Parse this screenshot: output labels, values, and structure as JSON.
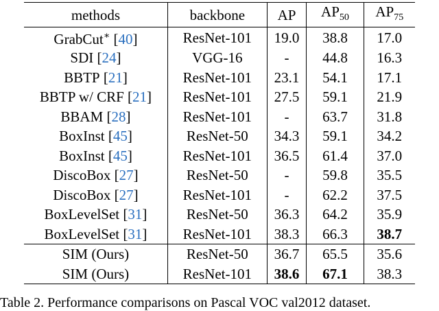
{
  "table": {
    "header": [
      {
        "text": "methods"
      },
      {
        "text": "backbone"
      },
      {
        "text": "AP"
      },
      {
        "text": "AP",
        "sub": "50"
      },
      {
        "text": "AP",
        "sub": "75"
      }
    ],
    "rows": [
      {
        "method": {
          "name": "GrabCut",
          "sup": "∗",
          "cite": [
            "[",
            "40",
            "]"
          ]
        },
        "cells": [
          "ResNet-101",
          "19.0",
          "38.8",
          "17.0"
        ]
      },
      {
        "method": {
          "name": "SDI",
          "cite": [
            "[",
            "24",
            "]"
          ]
        },
        "cells": [
          "VGG-16",
          "-",
          "44.8",
          "16.3"
        ]
      },
      {
        "method": {
          "name": "BBTP",
          "cite": [
            "[",
            "21",
            "]"
          ]
        },
        "cells": [
          "ResNet-101",
          "23.1",
          "54.1",
          "17.1"
        ]
      },
      {
        "method": {
          "name": "BBTP w/ CRF",
          "cite": [
            "[",
            "21",
            "]"
          ]
        },
        "cells": [
          "ResNet-101",
          "27.5",
          "59.1",
          "21.9"
        ]
      },
      {
        "method": {
          "name": "BBAM",
          "cite": [
            "[",
            "28",
            "]"
          ]
        },
        "cells": [
          "ResNet-101",
          "-",
          "63.7",
          "31.8"
        ]
      },
      {
        "method": {
          "name": "BoxInst",
          "cite": [
            "[",
            "45",
            "]"
          ]
        },
        "cells": [
          "ResNet-50",
          "34.3",
          "59.1",
          "34.2"
        ]
      },
      {
        "method": {
          "name": "BoxInst",
          "cite": [
            "[",
            "45",
            "]"
          ]
        },
        "cells": [
          "ResNet-101",
          "36.5",
          "61.4",
          "37.0"
        ]
      },
      {
        "method": {
          "name": "DiscoBox",
          "cite": [
            "[",
            "27",
            "]"
          ]
        },
        "cells": [
          "ResNet-50",
          "-",
          "59.8",
          "35.5"
        ]
      },
      {
        "method": {
          "name": "DiscoBox",
          "cite": [
            "[",
            "27",
            "]"
          ]
        },
        "cells": [
          "ResNet-101",
          "-",
          "62.2",
          "37.5"
        ]
      },
      {
        "method": {
          "name": "BoxLevelSet",
          "cite": [
            "[",
            "31",
            "]"
          ]
        },
        "cells": [
          "ResNet-50",
          "36.3",
          "64.2",
          "35.9"
        ]
      },
      {
        "method": {
          "name": "BoxLevelSet",
          "cite": [
            "[",
            "31",
            "]"
          ]
        },
        "cells": [
          "ResNet-101",
          "38.3",
          "66.3",
          "38.7"
        ],
        "bold": [
          3
        ]
      },
      {
        "method": {
          "name": "SIM (Ours)"
        },
        "cells": [
          "ResNet-50",
          "36.7",
          "65.5",
          "35.6"
        ],
        "group_start": true
      },
      {
        "method": {
          "name": "SIM (Ours)"
        },
        "cells": [
          "ResNet-101",
          "38.6",
          "67.1",
          "38.3"
        ],
        "bold": [
          1,
          2
        ]
      }
    ],
    "caption": "Table 2. Performance comparisons on Pascal VOC val2012 dataset."
  }
}
